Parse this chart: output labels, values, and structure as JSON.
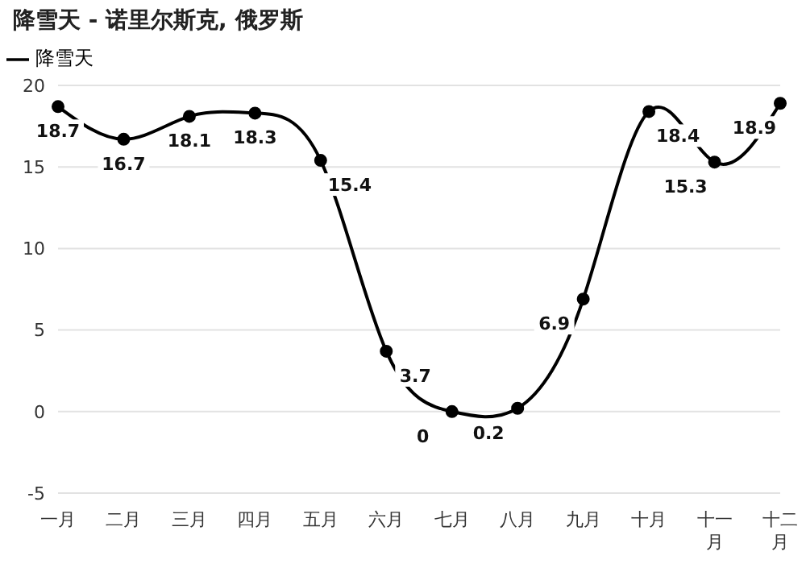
{
  "chart_data": {
    "type": "line",
    "title": "降雪天 - 诺里尔斯克, 俄罗斯",
    "categories": [
      "一月",
      "二月",
      "三月",
      "四月",
      "五月",
      "六月",
      "七月",
      "八月",
      "九月",
      "十月",
      "十一月",
      "十二月"
    ],
    "series": [
      {
        "name": "降雪天",
        "color": "#000000",
        "values": [
          18.7,
          16.7,
          18.1,
          18.3,
          15.4,
          3.7,
          0,
          0.2,
          6.9,
          18.4,
          15.3,
          18.9
        ]
      }
    ],
    "ylim": [
      -5,
      20
    ],
    "yticks": [
      -5,
      0,
      5,
      10,
      15,
      20
    ],
    "grid": "y",
    "legend": "top left",
    "marker": "circle",
    "line_style": "solid",
    "data_labels": true
  }
}
